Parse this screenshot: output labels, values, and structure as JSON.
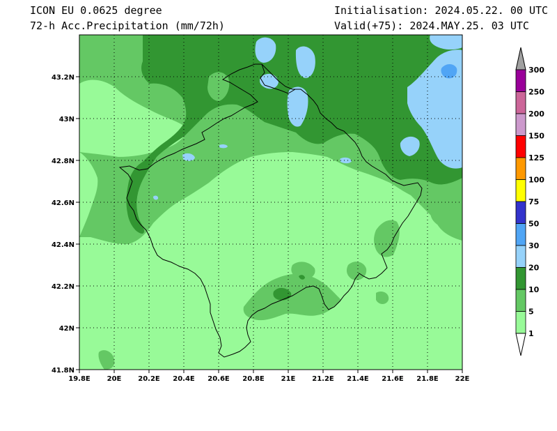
{
  "header": {
    "model": "ICON EU 0.0625 degree",
    "field": "72-h Acc.Precipitation (mm/72h)",
    "init": "Initialisation: 2024.05.22. 00 UTC",
    "valid": "Valid(+75): 2024.MAY.25. 03 UTC"
  },
  "map": {
    "lon_ticks": [
      "19.8E",
      "20E",
      "20.2E",
      "20.4E",
      "20.6E",
      "20.8E",
      "21E",
      "21.2E",
      "21.4E",
      "21.6E",
      "21.8E",
      "22E"
    ],
    "lat_ticks": [
      "43.2N",
      "43N",
      "42.8N",
      "42.6N",
      "42.4N",
      "42.2N",
      "42N",
      "41.8N"
    ],
    "colors": {
      "c1": "#f0f0f0",
      "c5": "#98fa98",
      "c10": "#64c864",
      "c20": "#329632",
      "c30": "#96d2fa",
      "c50": "#50a5f5"
    }
  },
  "legend": {
    "labels": [
      "300",
      "250",
      "200",
      "150",
      "125",
      "100",
      "75",
      "50",
      "30",
      "20",
      "10",
      "5",
      "1"
    ],
    "colors": [
      "#990099",
      "#cc6699",
      "#cc99cc",
      "#ff0000",
      "#ff9900",
      "#ffff00",
      "#3333cc",
      "#50a5f5",
      "#96d2fa",
      "#329632",
      "#64c864",
      "#98fa98",
      "#ffffff"
    ]
  }
}
